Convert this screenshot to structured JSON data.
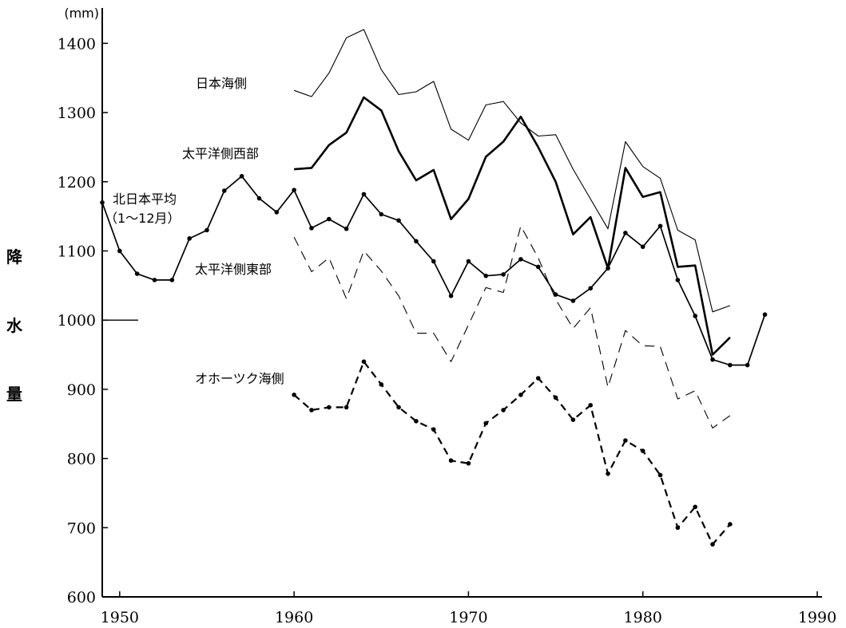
{
  "chart_data": {
    "type": "line",
    "title": "",
    "xlabel": "",
    "ylabel": "降水量",
    "ylabel_chars": [
      "降",
      "水",
      "量"
    ],
    "unit": "(mm)",
    "xlim": [
      1949,
      1990
    ],
    "ylim": [
      600,
      1420
    ],
    "x_ticks": [
      1950,
      1960,
      1970,
      1980,
      1990
    ],
    "y_ticks": [
      600,
      700,
      800,
      900,
      1000,
      1100,
      1200,
      1300,
      1400
    ],
    "reference_line": {
      "y": 1000
    },
    "grid": false,
    "legend": "none (series labelled by annotations on the plot)",
    "series": [
      {
        "name": "日本海側",
        "style": "thin-solid",
        "markers": false,
        "points": [
          [
            1960,
            1332
          ],
          [
            1961,
            1323
          ],
          [
            1962,
            1357
          ],
          [
            1963,
            1408
          ],
          [
            1964,
            1420
          ],
          [
            1965,
            1362
          ],
          [
            1966,
            1326
          ],
          [
            1967,
            1330
          ],
          [
            1968,
            1345
          ],
          [
            1969,
            1276
          ],
          [
            1970,
            1260
          ],
          [
            1971,
            1311
          ],
          [
            1972,
            1316
          ],
          [
            1973,
            1285
          ],
          [
            1974,
            1266
          ],
          [
            1975,
            1268
          ],
          [
            1976,
            1218
          ],
          [
            1977,
            1175
          ],
          [
            1978,
            1132
          ],
          [
            1979,
            1258
          ],
          [
            1980,
            1222
          ],
          [
            1981,
            1205
          ],
          [
            1982,
            1130
          ],
          [
            1983,
            1116
          ],
          [
            1984,
            1012
          ],
          [
            1985,
            1021
          ]
        ]
      },
      {
        "name": "太平洋側西部",
        "style": "thick-solid",
        "markers": false,
        "points": [
          [
            1960,
            1218
          ],
          [
            1961,
            1220
          ],
          [
            1962,
            1253
          ],
          [
            1963,
            1271
          ],
          [
            1964,
            1322
          ],
          [
            1965,
            1303
          ],
          [
            1966,
            1244
          ],
          [
            1967,
            1202
          ],
          [
            1968,
            1217
          ],
          [
            1969,
            1146
          ],
          [
            1970,
            1175
          ],
          [
            1971,
            1236
          ],
          [
            1972,
            1258
          ],
          [
            1973,
            1294
          ],
          [
            1974,
            1250
          ],
          [
            1975,
            1200
          ],
          [
            1976,
            1124
          ],
          [
            1977,
            1149
          ],
          [
            1978,
            1075
          ],
          [
            1979,
            1220
          ],
          [
            1980,
            1178
          ],
          [
            1981,
            1185
          ],
          [
            1982,
            1077
          ],
          [
            1983,
            1079
          ],
          [
            1984,
            950
          ],
          [
            1985,
            975
          ]
        ]
      },
      {
        "name": "北日本平均",
        "name_line2": "（1～12月）",
        "style": "solid",
        "markers": true,
        "points": [
          [
            1949,
            1170
          ],
          [
            1950,
            1100
          ],
          [
            1951,
            1067
          ],
          [
            1952,
            1058
          ],
          [
            1953,
            1058
          ],
          [
            1954,
            1118
          ],
          [
            1955,
            1130
          ],
          [
            1956,
            1187
          ],
          [
            1957,
            1208
          ],
          [
            1958,
            1176
          ],
          [
            1959,
            1156
          ],
          [
            1960,
            1188
          ],
          [
            1961,
            1133
          ],
          [
            1962,
            1146
          ],
          [
            1963,
            1132
          ],
          [
            1964,
            1182
          ],
          [
            1965,
            1153
          ],
          [
            1966,
            1144
          ],
          [
            1967,
            1114
          ],
          [
            1968,
            1085
          ],
          [
            1969,
            1035
          ],
          [
            1970,
            1085
          ],
          [
            1971,
            1064
          ],
          [
            1972,
            1066
          ],
          [
            1973,
            1088
          ],
          [
            1974,
            1077
          ],
          [
            1975,
            1037
          ],
          [
            1976,
            1028
          ],
          [
            1977,
            1046
          ],
          [
            1978,
            1075
          ],
          [
            1979,
            1126
          ],
          [
            1980,
            1106
          ],
          [
            1981,
            1136
          ],
          [
            1982,
            1058
          ],
          [
            1983,
            1006
          ],
          [
            1984,
            943
          ],
          [
            1985,
            935
          ],
          [
            1986,
            935
          ],
          [
            1987,
            1008
          ]
        ]
      },
      {
        "name": "太平洋側東部",
        "style": "thin-dashed",
        "markers": false,
        "points": [
          [
            1960,
            1120
          ],
          [
            1961,
            1070
          ],
          [
            1962,
            1090
          ],
          [
            1963,
            1031
          ],
          [
            1964,
            1100
          ],
          [
            1965,
            1071
          ],
          [
            1966,
            1035
          ],
          [
            1967,
            981
          ],
          [
            1968,
            981
          ],
          [
            1969,
            940
          ],
          [
            1970,
            993
          ],
          [
            1971,
            1047
          ],
          [
            1972,
            1040
          ],
          [
            1973,
            1136
          ],
          [
            1974,
            1090
          ],
          [
            1975,
            1030
          ],
          [
            1976,
            988
          ],
          [
            1977,
            1018
          ],
          [
            1978,
            903
          ],
          [
            1979,
            985
          ],
          [
            1980,
            963
          ],
          [
            1981,
            962
          ],
          [
            1982,
            886
          ],
          [
            1983,
            898
          ],
          [
            1984,
            844
          ],
          [
            1985,
            862
          ]
        ]
      },
      {
        "name": "オホーツク海側",
        "style": "thick-dashed",
        "markers": true,
        "points": [
          [
            1960,
            892
          ],
          [
            1961,
            870
          ],
          [
            1962,
            874
          ],
          [
            1963,
            874
          ],
          [
            1964,
            940
          ],
          [
            1965,
            907
          ],
          [
            1966,
            874
          ],
          [
            1967,
            854
          ],
          [
            1968,
            842
          ],
          [
            1969,
            797
          ],
          [
            1970,
            793
          ],
          [
            1971,
            851
          ],
          [
            1972,
            870
          ],
          [
            1973,
            892
          ],
          [
            1974,
            916
          ],
          [
            1975,
            888
          ],
          [
            1976,
            856
          ],
          [
            1977,
            877
          ],
          [
            1978,
            778
          ],
          [
            1979,
            826
          ],
          [
            1980,
            811
          ],
          [
            1981,
            776
          ],
          [
            1982,
            700
          ],
          [
            1983,
            730
          ],
          [
            1984,
            676
          ],
          [
            1985,
            705
          ]
        ]
      }
    ]
  }
}
